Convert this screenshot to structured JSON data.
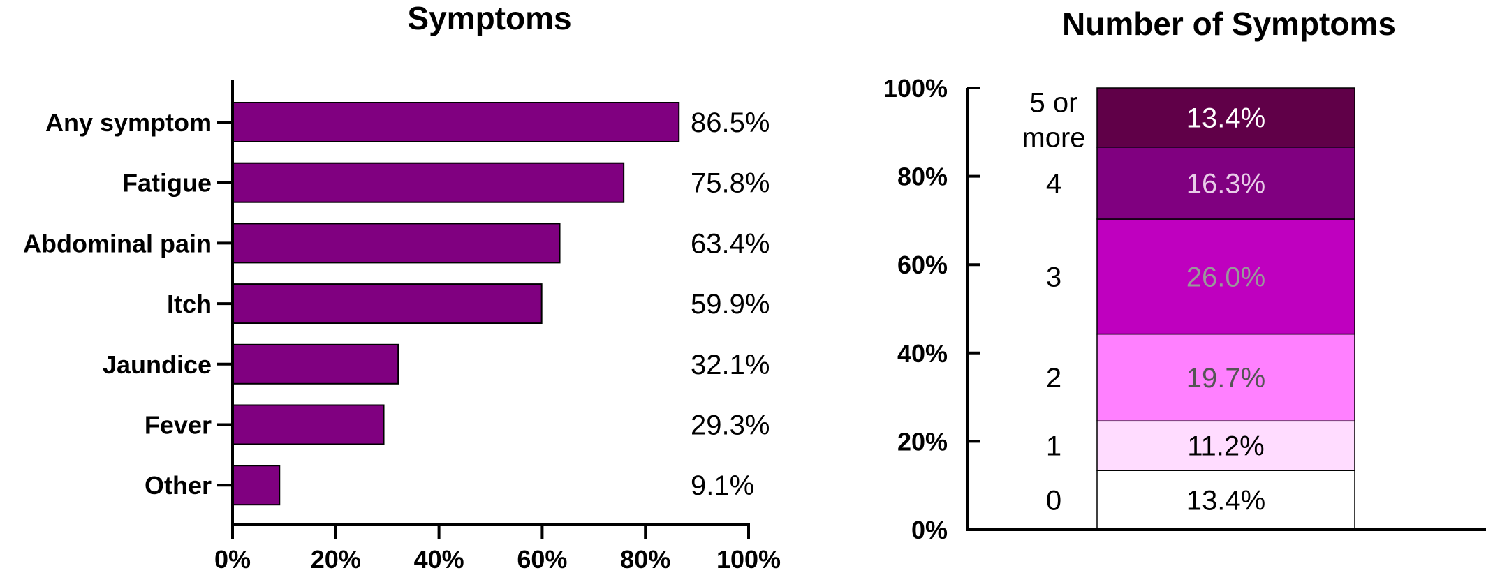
{
  "colors": {
    "bar_fill": "#800080",
    "axis": "#000000"
  },
  "chart_data": [
    {
      "type": "bar",
      "orientation": "horizontal",
      "title": "Symptoms",
      "categories": [
        "Any symptom",
        "Fatigue",
        "Abdominal pain",
        "Itch",
        "Jaundice",
        "Fever",
        "Other"
      ],
      "values": [
        86.5,
        75.8,
        63.4,
        59.9,
        32.1,
        29.3,
        9.1
      ],
      "data_labels": [
        "86.5%",
        "75.8%",
        "63.4%",
        "59.9%",
        "32.1%",
        "29.3%",
        "9.1%"
      ],
      "xlim": [
        0,
        100
      ],
      "xticks": [
        0,
        20,
        40,
        60,
        80,
        100
      ],
      "xtick_labels": [
        "0%",
        "20%",
        "40%",
        "60%",
        "80%",
        "100%"
      ],
      "grid": false
    },
    {
      "type": "bar",
      "stacked": true,
      "title": "Number of Symptoms",
      "categories": [
        "0",
        "1",
        "2",
        "3",
        "4",
        "5 or more"
      ],
      "values": [
        13.4,
        11.2,
        19.7,
        26.0,
        16.3,
        13.4
      ],
      "data_labels": [
        "13.4%",
        "11.2%",
        "19.7%",
        "26.0%",
        "16.3%",
        "13.4%"
      ],
      "colors": [
        "#ffffff",
        "#ffdcff",
        "#ff80ff",
        "#bf00bf",
        "#800080",
        "#600048"
      ],
      "label_colors": [
        "#000000",
        "#000000",
        "#555555",
        "#999999",
        "#e8cce8",
        "#ffffff"
      ],
      "ylim": [
        0,
        100
      ],
      "yticks": [
        0,
        20,
        40,
        60,
        80,
        100
      ],
      "ytick_labels": [
        "0%",
        "20%",
        "40%",
        "60%",
        "80%",
        "100%"
      ],
      "grid": false
    }
  ]
}
